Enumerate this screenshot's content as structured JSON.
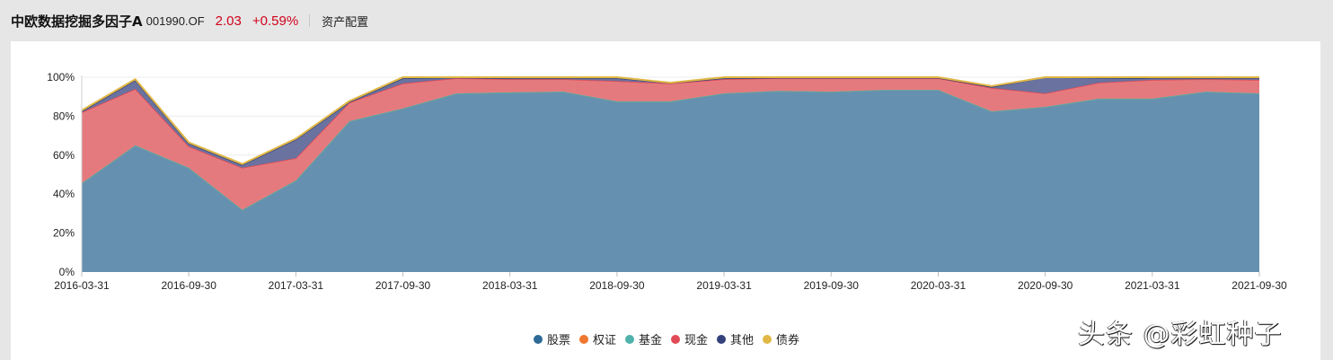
{
  "header": {
    "fund_name": "中欧数据挖掘多因子A",
    "fund_code": "001990.OF",
    "nav": "2.03",
    "change": "+0.59%",
    "section_title": "资产配置"
  },
  "colors": {
    "stock": "#2d6a96",
    "warrant": "#f0772d",
    "fund": "#4fb2aa",
    "cash": "#e04b55",
    "other": "#34407a",
    "bond": "#e1b845",
    "price_red": "#d0021b"
  },
  "legend": [
    {
      "label": "股票",
      "color": "#2d6a96"
    },
    {
      "label": "权证",
      "color": "#f0772d"
    },
    {
      "label": "基金",
      "color": "#4fb2aa"
    },
    {
      "label": "现金",
      "color": "#e04b55"
    },
    {
      "label": "其他",
      "color": "#34407a"
    },
    {
      "label": "债券",
      "color": "#e1b845"
    }
  ],
  "watermark": "头条 @彩虹种子",
  "chart_data": {
    "type": "area",
    "stacked": true,
    "title": "资产配置",
    "xlabel": "",
    "ylabel": "",
    "ylim": [
      0,
      100
    ],
    "y_ticks": [
      "0%",
      "20%",
      "40%",
      "60%",
      "80%",
      "100%"
    ],
    "x_tick_labels": [
      "2016-03-31",
      "2016-09-30",
      "2017-03-31",
      "2017-09-30",
      "2018-03-31",
      "2018-09-30",
      "2019-03-31",
      "2019-09-30",
      "2020-03-31",
      "2020-09-30",
      "2021-03-31",
      "2021-09-30"
    ],
    "legend_position": "bottom",
    "grid": true,
    "x": [
      "2016-03-31",
      "2016-06-30",
      "2016-09-30",
      "2016-12-31",
      "2017-03-31",
      "2017-06-30",
      "2017-09-30",
      "2017-12-31",
      "2018-03-31",
      "2018-06-30",
      "2018-09-30",
      "2018-12-31",
      "2019-03-31",
      "2019-06-30",
      "2019-09-30",
      "2019-12-31",
      "2020-03-31",
      "2020-06-30",
      "2020-09-30",
      "2020-12-31",
      "2021-03-31",
      "2021-06-30",
      "2021-09-30"
    ],
    "series": [
      {
        "name": "股票",
        "values": [
          45.6,
          65.0,
          53.5,
          32.0,
          47.0,
          77.4,
          84.0,
          91.7,
          92.2,
          92.6,
          87.6,
          87.6,
          91.7,
          93.0,
          92.6,
          93.5,
          93.5,
          82.5,
          84.8,
          89.0,
          89.0,
          92.6,
          91.7
        ]
      },
      {
        "name": "权证",
        "values": [
          0,
          0,
          0,
          0,
          0,
          0,
          0,
          0,
          0,
          0,
          0,
          0,
          0,
          0,
          0,
          0,
          0,
          0,
          0,
          0,
          0,
          0,
          0
        ]
      },
      {
        "name": "基金",
        "values": [
          0,
          0,
          0,
          0,
          0,
          0,
          0,
          0,
          0,
          0,
          0,
          0,
          0,
          0,
          0,
          0,
          0,
          0,
          0,
          0,
          0,
          0,
          0
        ]
      },
      {
        "name": "现金",
        "values": [
          36.4,
          29.0,
          11.0,
          21.5,
          11.5,
          9.6,
          12.8,
          7.8,
          6.8,
          6.4,
          10.4,
          9.2,
          7.3,
          6.5,
          6.9,
          6.0,
          6.0,
          12.0,
          6.9,
          8.2,
          9.6,
          6.4,
          6.9
        ]
      },
      {
        "name": "其他",
        "values": [
          0.5,
          4.5,
          1.5,
          1.5,
          9.5,
          0.3,
          2.7,
          0.3,
          0.5,
          0.5,
          1.5,
          0.2,
          0.5,
          0.2,
          0.2,
          0.2,
          0.2,
          0.5,
          8.3,
          2.5,
          0.9,
          0.5,
          0.9
        ]
      },
      {
        "name": "债券",
        "values": [
          0.5,
          0.5,
          0.5,
          0.5,
          0.5,
          0.5,
          0.5,
          0.2,
          0.5,
          0.5,
          0.5,
          0.2,
          0.5,
          0.3,
          0.3,
          0.3,
          0.3,
          0.5,
          0.0,
          0.3,
          0.5,
          0.5,
          0.5
        ]
      }
    ]
  }
}
